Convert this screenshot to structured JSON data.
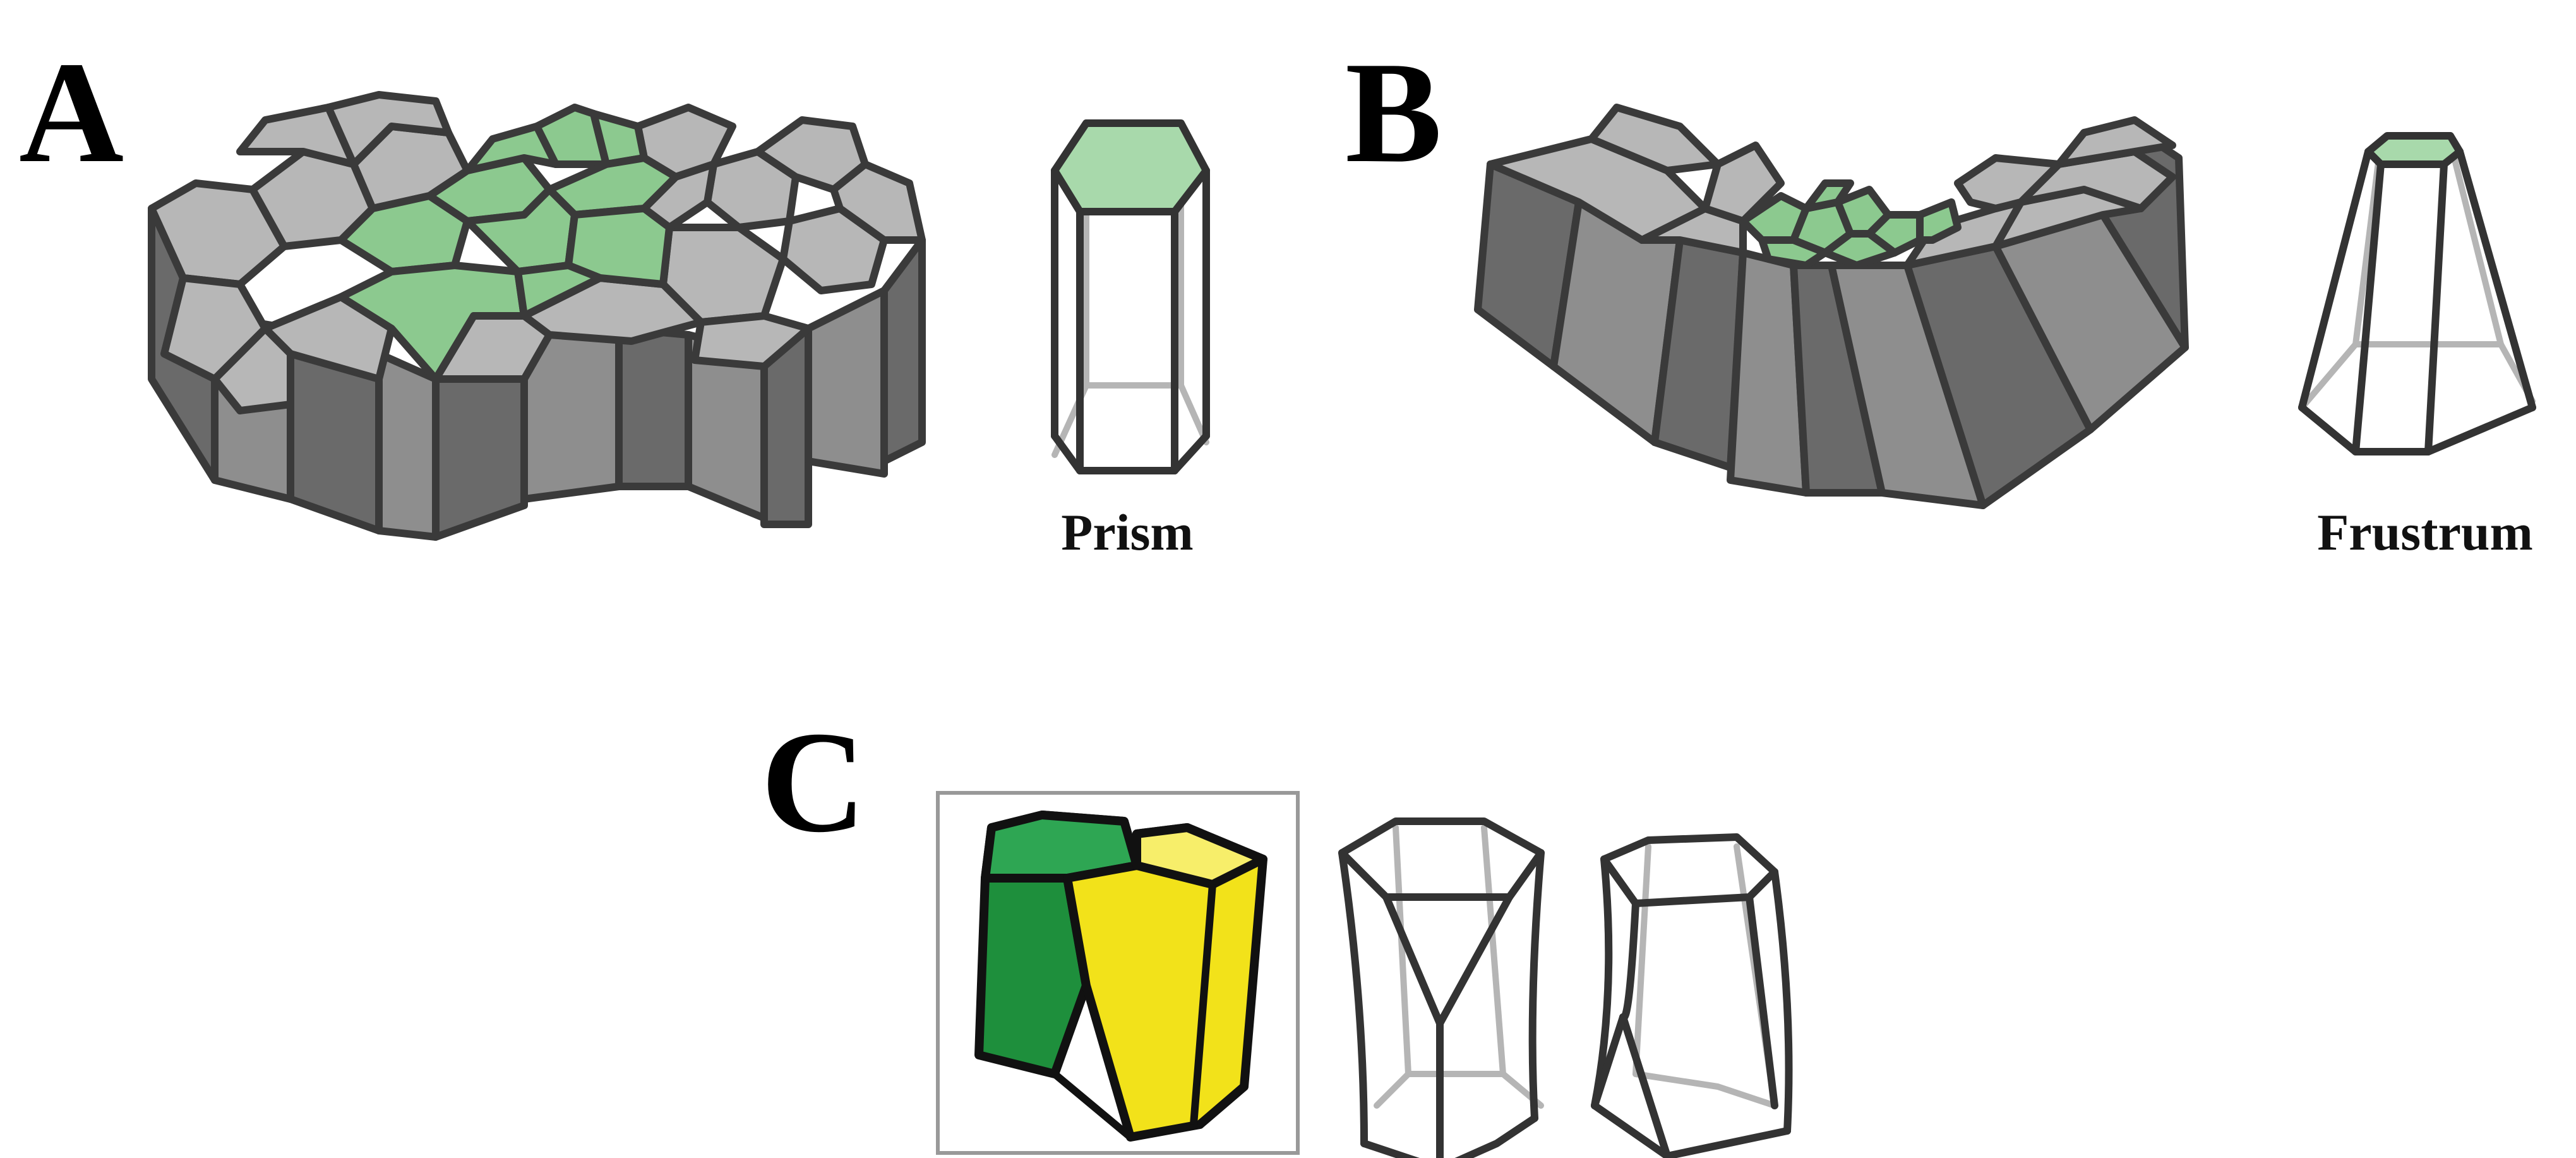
{
  "panels": {
    "a": {
      "letter": "A",
      "caption": "Prism"
    },
    "b": {
      "letter": "B",
      "caption": "Frustrum"
    },
    "c": {
      "letter": "C"
    }
  },
  "colors": {
    "cell_gray": "#b7b7b7",
    "cell_side": "#8e8e8e",
    "cell_green": "#8cc98f",
    "scutoid_green": "#1e8f3c",
    "scutoid_yellow": "#f2e21a",
    "outline": "#333333"
  }
}
